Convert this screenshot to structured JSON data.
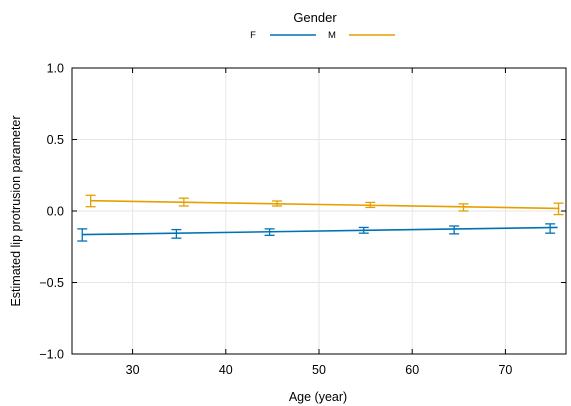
{
  "chart_data": {
    "type": "line",
    "title": "",
    "xlabel": "Age (year)",
    "ylabel": "Estimated lip protrusion parameter",
    "xlim": [
      23.5,
      76.5
    ],
    "ylim": [
      -1.0,
      1.0
    ],
    "x_ticks": [
      "30",
      "40",
      "50",
      "60",
      "70"
    ],
    "x_tick_values": [
      30,
      40,
      50,
      60,
      70
    ],
    "y_ticks": [
      "1.0",
      "0.5",
      "0.0",
      "−0.5",
      "−1.0"
    ],
    "y_tick_values": [
      1.0,
      0.5,
      0.0,
      -0.5,
      -1.0
    ],
    "grid": true,
    "legend": {
      "title": "Gender",
      "placement": "top",
      "entries": [
        "F",
        "M"
      ]
    },
    "series": [
      {
        "name": "F",
        "color": "#0072b2",
        "line": {
          "x": [
            24.6,
            75.6
          ],
          "y": [
            -0.165,
            -0.115
          ]
        },
        "points": [
          {
            "x": 24.6,
            "y": -0.16,
            "lo": -0.21,
            "hi": -0.125
          },
          {
            "x": 34.7,
            "y": -0.16,
            "lo": -0.19,
            "hi": -0.13
          },
          {
            "x": 44.7,
            "y": -0.15,
            "lo": -0.17,
            "hi": -0.125
          },
          {
            "x": 54.8,
            "y": -0.135,
            "lo": -0.155,
            "hi": -0.115
          },
          {
            "x": 64.5,
            "y": -0.13,
            "lo": -0.16,
            "hi": -0.105
          },
          {
            "x": 74.8,
            "y": -0.12,
            "lo": -0.155,
            "hi": -0.09
          }
        ]
      },
      {
        "name": "M",
        "color": "#e69f00",
        "line": {
          "x": [
            25.5,
            75.8
          ],
          "y": [
            0.072,
            0.018
          ]
        },
        "points": [
          {
            "x": 25.5,
            "y": 0.07,
            "lo": 0.03,
            "hi": 0.11
          },
          {
            "x": 35.5,
            "y": 0.065,
            "lo": 0.035,
            "hi": 0.09
          },
          {
            "x": 45.5,
            "y": 0.05,
            "lo": 0.035,
            "hi": 0.07
          },
          {
            "x": 55.5,
            "y": 0.04,
            "lo": 0.025,
            "hi": 0.06
          },
          {
            "x": 65.5,
            "y": 0.025,
            "lo": 0.0,
            "hi": 0.05
          },
          {
            "x": 75.7,
            "y": 0.02,
            "lo": -0.025,
            "hi": 0.055
          }
        ]
      }
    ]
  }
}
